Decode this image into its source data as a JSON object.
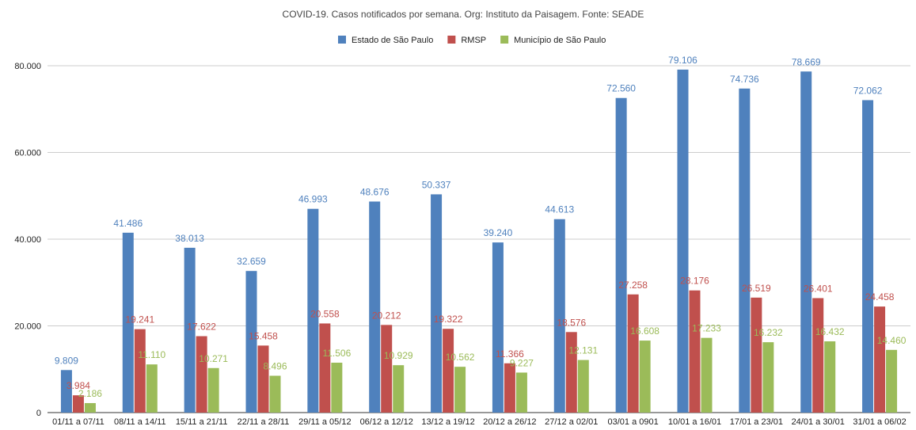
{
  "chart_data": {
    "type": "bar",
    "title": "COVID-19. Casos notificados por semana. Org: Instituto da Paisagem. Fonte: SEADE",
    "xlabel": "",
    "ylabel": "",
    "ylim": [
      0,
      80000
    ],
    "yticks": [
      0,
      20000,
      40000,
      60000,
      80000
    ],
    "ytick_labels": [
      "0",
      "20.000",
      "40.000",
      "60.000",
      "80.000"
    ],
    "grid": true,
    "legend_position": "top",
    "categories": [
      "01/11 a 07/11",
      "08/11 a 14/11",
      "15/11 a 21/11",
      "22/11 a 28/11",
      "29/11 a 05/12",
      "06/12 a 12/12",
      "13/12 a 19/12",
      "20/12 a 26/12",
      "27/12 a 02/01",
      "03/01 a 0901",
      "10/01 a 16/01",
      "17/01 a 23/01",
      "24/01 a 30/01",
      "31/01 a 06/02"
    ],
    "series": [
      {
        "name": "Estado de São Paulo",
        "color": "#4f81bd",
        "values": [
          9809,
          41486,
          38013,
          32659,
          46993,
          48676,
          50337,
          39240,
          44613,
          72560,
          79106,
          74736,
          78669,
          72062
        ],
        "labels": [
          "9.809",
          "41.486",
          "38.013",
          "32.659",
          "46.993",
          "48.676",
          "50.337",
          "39.240",
          "44.613",
          "72.560",
          "79.106",
          "74.736",
          "78.669",
          "72.062"
        ]
      },
      {
        "name": "RMSP",
        "color": "#c0504d",
        "values": [
          3984,
          19241,
          17622,
          15458,
          20558,
          20212,
          19322,
          11366,
          18576,
          27258,
          28176,
          26519,
          26401,
          24458
        ],
        "labels": [
          "3.984",
          "19.241",
          "17.622",
          "15.458",
          "20.558",
          "20.212",
          "19.322",
          "11.366",
          "18.576",
          "27.258",
          "28.176",
          "26.519",
          "26.401",
          "24.458"
        ]
      },
      {
        "name": "Município de São Paulo",
        "color": "#9bbb59",
        "values": [
          2186,
          11110,
          10271,
          8496,
          11506,
          10929,
          10562,
          9227,
          12131,
          16608,
          17233,
          16232,
          16432,
          14460
        ],
        "labels": [
          "2.186",
          "11.110",
          "10.271",
          "8.496",
          "11.506",
          "10.929",
          "10.562",
          "9.227",
          "12.131",
          "16.608",
          "17.233",
          "16.232",
          "16.432",
          "14.460"
        ]
      }
    ]
  }
}
